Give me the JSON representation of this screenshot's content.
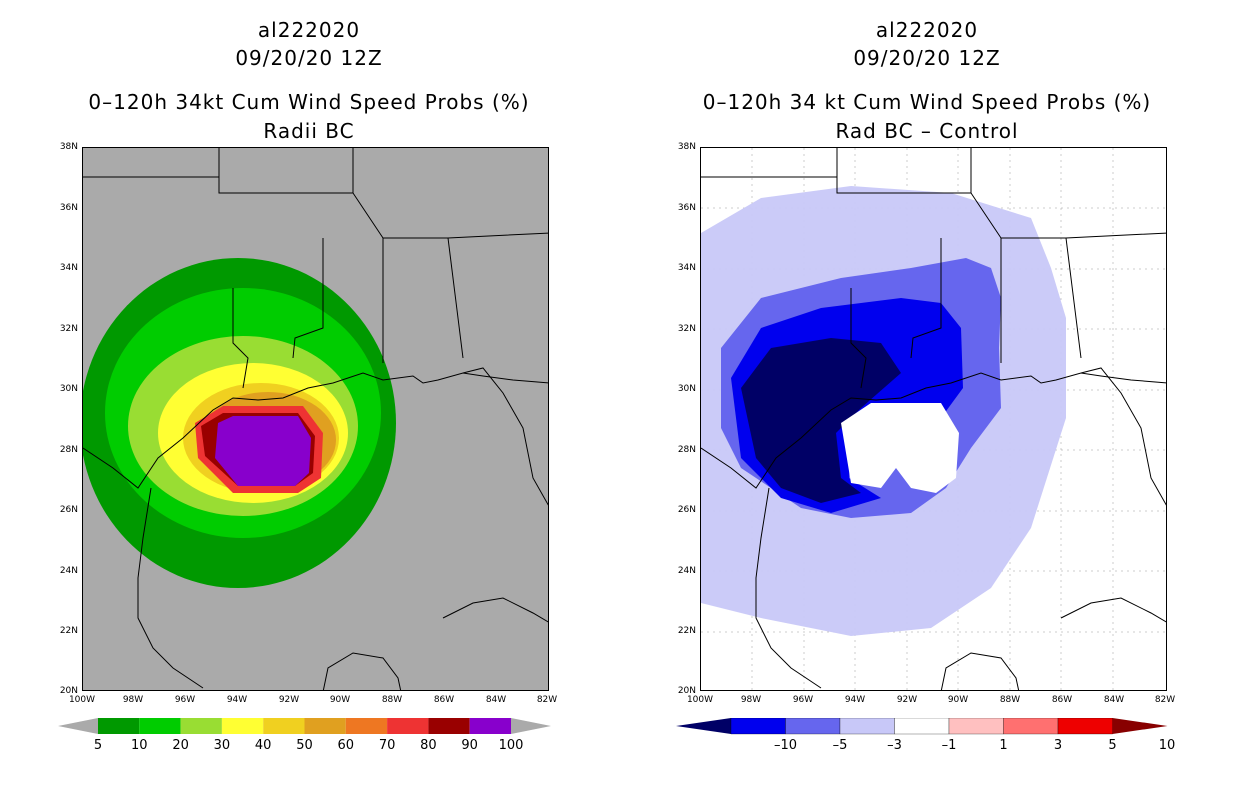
{
  "left": {
    "title_line1": "al222020",
    "title_line2": "09/20/20 12Z",
    "title_line3": "0–120h 34kt Cum Wind Speed Probs (%)",
    "title_line4": "Radii BC",
    "lat_labels": [
      "38N",
      "36N",
      "34N",
      "32N",
      "30N",
      "28N",
      "26N",
      "24N",
      "22N",
      "20N"
    ],
    "lon_labels": [
      "100W",
      "98W",
      "96W",
      "94W",
      "92W",
      "90W",
      "88W",
      "86W",
      "84W",
      "82W"
    ],
    "colorbar": {
      "labels": [
        "5",
        "10",
        "20",
        "30",
        "40",
        "50",
        "60",
        "70",
        "80",
        "90",
        "100"
      ],
      "colors": [
        "#009900",
        "#00cc00",
        "#99dd33",
        "#ffff33",
        "#f0d020",
        "#e0a020",
        "#ee7722",
        "#ee3333",
        "#990000",
        "#8800cc"
      ]
    }
  },
  "right": {
    "title_line1": "al222020",
    "title_line2": "09/20/20 12Z",
    "title_line3": "0–120h 34 kt Cum Wind Speed Probs (%)",
    "title_line4": "Rad BC – Control",
    "lat_labels": [
      "38N",
      "36N",
      "34N",
      "32N",
      "30N",
      "28N",
      "26N",
      "24N",
      "22N",
      "20N"
    ],
    "lon_labels": [
      "100W",
      "98W",
      "96W",
      "94W",
      "92W",
      "90W",
      "88W",
      "86W",
      "84W",
      "82W"
    ],
    "colorbar": {
      "labels": [
        "–10",
        "–5",
        "–3",
        "–1",
        "1",
        "3",
        "5",
        "10"
      ],
      "colors": [
        "#000066",
        "#0000ee",
        "#6666ee",
        "#c8c8f8",
        "#ffffff",
        "#ffc0c0",
        "#ff7070",
        "#ee0000",
        "#880000"
      ]
    }
  }
}
